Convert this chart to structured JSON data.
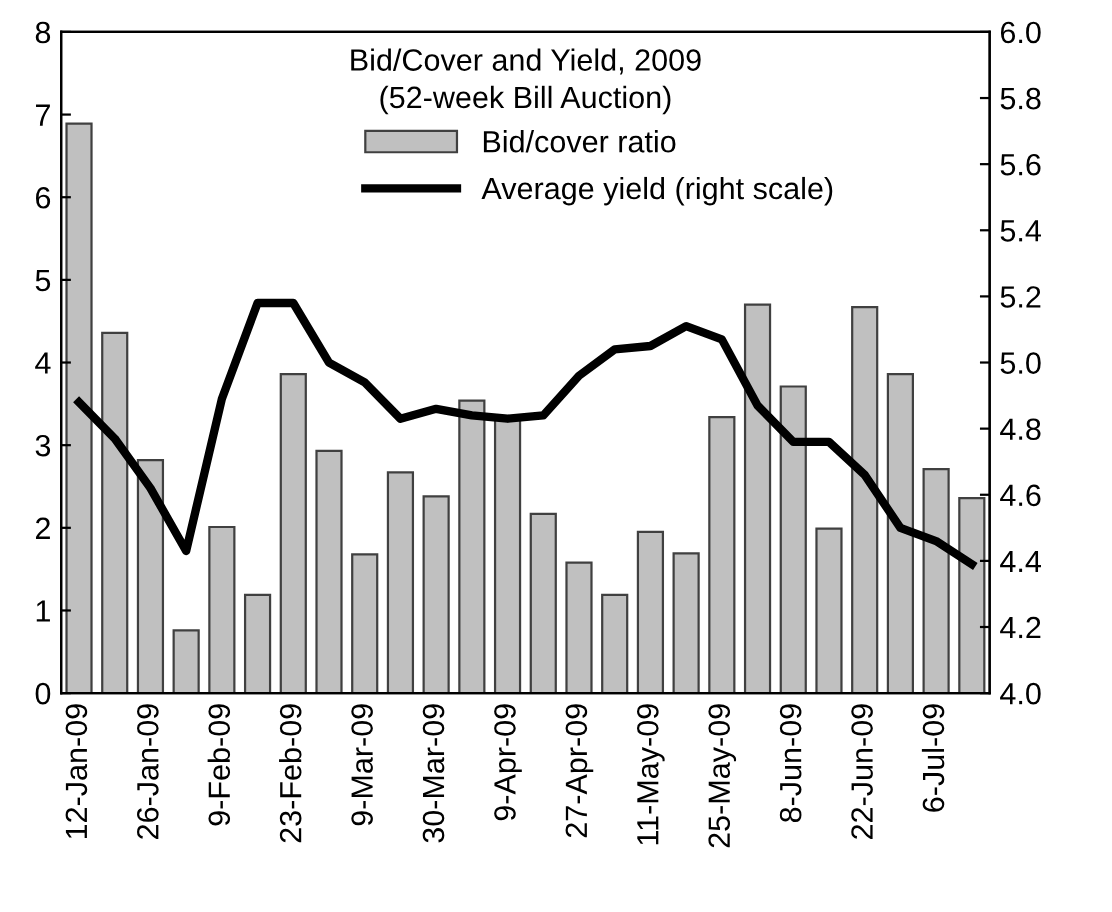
{
  "chart_data": {
    "type": "bar",
    "title": "Bid/Cover and Yield, 2009",
    "subtitle": "(52-week Bill Auction)",
    "categories": [
      "12-Jan-09",
      null,
      "26-Jan-09",
      null,
      "9-Feb-09",
      null,
      "23-Feb-09",
      null,
      "9-Mar-09",
      null,
      "30-Mar-09",
      null,
      "9-Apr-09",
      null,
      "27-Apr-09",
      null,
      "11-May-09",
      null,
      "25-May-09",
      null,
      "8-Jun-09",
      null,
      "22-Jun-09",
      null,
      "6-Jul-09",
      null
    ],
    "series": [
      {
        "name": "Bid/cover ratio",
        "color": "#c0c0c0",
        "values": [
          6.89,
          4.36,
          2.82,
          0.76,
          2.01,
          1.19,
          3.86,
          2.93,
          1.68,
          2.67,
          2.38,
          3.54,
          3.32,
          2.17,
          1.58,
          1.19,
          1.95,
          1.69,
          3.34,
          4.7,
          3.71,
          1.99,
          4.67,
          3.86,
          2.71,
          2.36
        ]
      },
      {
        "name": "Average yield (right scale)",
        "type": "line",
        "axis": "y2",
        "color": "#000000",
        "values": [
          4.88,
          4.77,
          4.62,
          4.43,
          4.89,
          5.18,
          5.18,
          5.0,
          4.94,
          4.83,
          4.86,
          4.84,
          4.83,
          4.84,
          4.96,
          5.04,
          5.05,
          5.11,
          5.07,
          4.87,
          4.76,
          4.76,
          4.66,
          4.5,
          4.46,
          4.39
        ]
      }
    ],
    "ylim": [
      0,
      8
    ],
    "yticks": [
      0,
      1,
      2,
      3,
      4,
      5,
      6,
      7,
      8
    ],
    "y2lim": [
      4.0,
      6.0
    ],
    "y2ticks": [
      {
        "value": 4.0,
        "label": "4.0"
      },
      {
        "value": 4.2,
        "label": "4.2"
      },
      {
        "value": 4.4,
        "label": "4.4"
      },
      {
        "value": 4.6,
        "label": "4.6"
      },
      {
        "value": 4.8,
        "label": "4.8"
      },
      {
        "value": 5.0,
        "label": "5.0"
      },
      {
        "value": 5.2,
        "label": "5.2"
      },
      {
        "value": 5.4,
        "label": "5.4"
      },
      {
        "value": 5.6,
        "label": "5.6"
      },
      {
        "value": 5.8,
        "label": "5.8"
      },
      {
        "value": 6.0,
        "label": "6.0"
      }
    ],
    "legend": "top",
    "grid": false
  }
}
